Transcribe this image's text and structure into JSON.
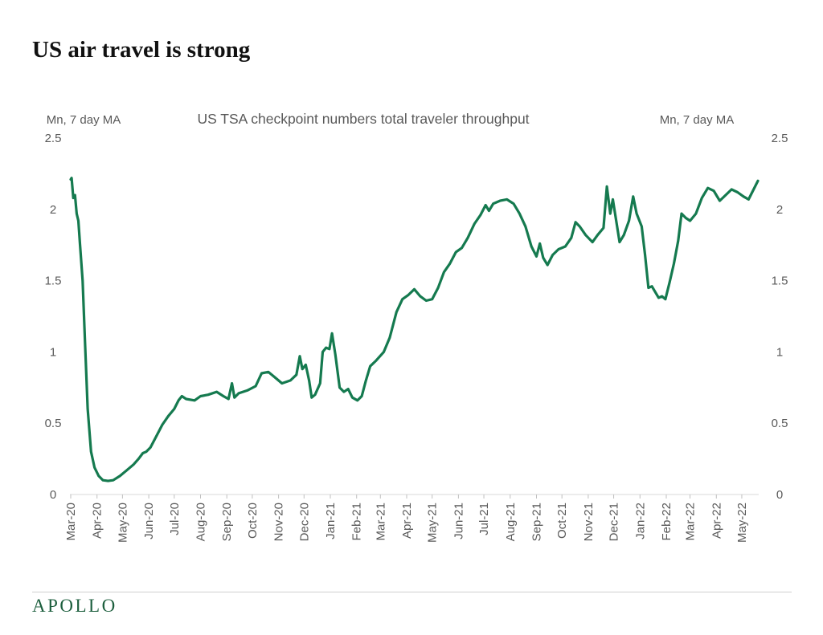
{
  "page": {
    "headline": "US air travel is strong",
    "brand": "APOLLO",
    "brand_color": "#1c5e3d"
  },
  "chart_data": {
    "type": "line",
    "title": "US TSA checkpoint numbers total traveler throughput",
    "y_left_label": "Mn, 7 day MA",
    "y_right_label": "Mn, 7 day MA",
    "ylim": [
      0,
      2.5
    ],
    "y_ticks": [
      "2.5",
      "2",
      "1.5",
      "1",
      "0.5",
      "0"
    ],
    "x_ticks": [
      "Mar-20",
      "Apr-20",
      "May-20",
      "Jun-20",
      "Jul-20",
      "Aug-20",
      "Sep-20",
      "Oct-20",
      "Nov-20",
      "Dec-20",
      "Jan-21",
      "Feb-21",
      "Mar-21",
      "Apr-21",
      "May-21",
      "Jun-21",
      "Jul-21",
      "Aug-21",
      "Sep-21",
      "Oct-21",
      "Nov-21",
      "Dec-21",
      "Jan-22",
      "Feb-22",
      "Mar-22",
      "Apr-22",
      "May-22"
    ],
    "grid": false,
    "legend": "none",
    "line_color": "#157a4f",
    "series": [
      {
        "points": [
          [
            "2020-03-01",
            2.21
          ],
          [
            "2020-03-02",
            2.22
          ],
          [
            "2020-03-04",
            2.08
          ],
          [
            "2020-03-06",
            2.1
          ],
          [
            "2020-03-08",
            1.97
          ],
          [
            "2020-03-10",
            1.92
          ],
          [
            "2020-03-12",
            1.75
          ],
          [
            "2020-03-15",
            1.5
          ],
          [
            "2020-03-18",
            1.05
          ],
          [
            "2020-03-21",
            0.6
          ],
          [
            "2020-03-25",
            0.3
          ],
          [
            "2020-03-29",
            0.19
          ],
          [
            "2020-04-03",
            0.13
          ],
          [
            "2020-04-08",
            0.1
          ],
          [
            "2020-04-14",
            0.095
          ],
          [
            "2020-04-20",
            0.1
          ],
          [
            "2020-04-28",
            0.13
          ],
          [
            "2020-05-06",
            0.17
          ],
          [
            "2020-05-14",
            0.21
          ],
          [
            "2020-05-20",
            0.25
          ],
          [
            "2020-05-25",
            0.29
          ],
          [
            "2020-05-29",
            0.3
          ],
          [
            "2020-06-03",
            0.33
          ],
          [
            "2020-06-10",
            0.41
          ],
          [
            "2020-06-17",
            0.49
          ],
          [
            "2020-06-24",
            0.55
          ],
          [
            "2020-07-01",
            0.6
          ],
          [
            "2020-07-06",
            0.66
          ],
          [
            "2020-07-10",
            0.69
          ],
          [
            "2020-07-15",
            0.67
          ],
          [
            "2020-07-25",
            0.66
          ],
          [
            "2020-08-01",
            0.69
          ],
          [
            "2020-08-10",
            0.7
          ],
          [
            "2020-08-20",
            0.72
          ],
          [
            "2020-08-28",
            0.69
          ],
          [
            "2020-09-03",
            0.67
          ],
          [
            "2020-09-07",
            0.78
          ],
          [
            "2020-09-10",
            0.68
          ],
          [
            "2020-09-15",
            0.71
          ],
          [
            "2020-09-25",
            0.73
          ],
          [
            "2020-10-05",
            0.76
          ],
          [
            "2020-10-12",
            0.85
          ],
          [
            "2020-10-20",
            0.86
          ],
          [
            "2020-10-28",
            0.82
          ],
          [
            "2020-11-05",
            0.78
          ],
          [
            "2020-11-15",
            0.8
          ],
          [
            "2020-11-22",
            0.84
          ],
          [
            "2020-11-26",
            0.97
          ],
          [
            "2020-11-29",
            0.88
          ],
          [
            "2020-12-03",
            0.91
          ],
          [
            "2020-12-07",
            0.8
          ],
          [
            "2020-12-10",
            0.68
          ],
          [
            "2020-12-14",
            0.7
          ],
          [
            "2020-12-20",
            0.78
          ],
          [
            "2020-12-23",
            1.0
          ],
          [
            "2020-12-27",
            1.03
          ],
          [
            "2020-12-31",
            1.02
          ],
          [
            "2021-01-03",
            1.13
          ],
          [
            "2021-01-07",
            0.98
          ],
          [
            "2021-01-12",
            0.75
          ],
          [
            "2021-01-17",
            0.72
          ],
          [
            "2021-01-22",
            0.74
          ],
          [
            "2021-01-27",
            0.68
          ],
          [
            "2021-02-02",
            0.66
          ],
          [
            "2021-02-07",
            0.69
          ],
          [
            "2021-02-12",
            0.8
          ],
          [
            "2021-02-17",
            0.9
          ],
          [
            "2021-02-24",
            0.94
          ],
          [
            "2021-03-05",
            1.0
          ],
          [
            "2021-03-12",
            1.1
          ],
          [
            "2021-03-20",
            1.28
          ],
          [
            "2021-03-27",
            1.37
          ],
          [
            "2021-04-03",
            1.4
          ],
          [
            "2021-04-10",
            1.44
          ],
          [
            "2021-04-17",
            1.39
          ],
          [
            "2021-04-24",
            1.36
          ],
          [
            "2021-05-01",
            1.37
          ],
          [
            "2021-05-08",
            1.45
          ],
          [
            "2021-05-15",
            1.56
          ],
          [
            "2021-05-22",
            1.62
          ],
          [
            "2021-05-29",
            1.7
          ],
          [
            "2021-06-05",
            1.73
          ],
          [
            "2021-06-12",
            1.8
          ],
          [
            "2021-06-20",
            1.9
          ],
          [
            "2021-06-27",
            1.96
          ],
          [
            "2021-07-03",
            2.03
          ],
          [
            "2021-07-07",
            1.99
          ],
          [
            "2021-07-12",
            2.04
          ],
          [
            "2021-07-20",
            2.06
          ],
          [
            "2021-07-28",
            2.07
          ],
          [
            "2021-08-05",
            2.04
          ],
          [
            "2021-08-12",
            1.97
          ],
          [
            "2021-08-19",
            1.88
          ],
          [
            "2021-08-26",
            1.74
          ],
          [
            "2021-09-01",
            1.67
          ],
          [
            "2021-09-05",
            1.76
          ],
          [
            "2021-09-09",
            1.66
          ],
          [
            "2021-09-14",
            1.61
          ],
          [
            "2021-09-20",
            1.68
          ],
          [
            "2021-09-27",
            1.72
          ],
          [
            "2021-10-05",
            1.74
          ],
          [
            "2021-10-12",
            1.8
          ],
          [
            "2021-10-17",
            1.91
          ],
          [
            "2021-10-22",
            1.88
          ],
          [
            "2021-10-29",
            1.82
          ],
          [
            "2021-11-06",
            1.77
          ],
          [
            "2021-11-12",
            1.82
          ],
          [
            "2021-11-19",
            1.87
          ],
          [
            "2021-11-23",
            2.16
          ],
          [
            "2021-11-27",
            1.97
          ],
          [
            "2021-11-30",
            2.07
          ],
          [
            "2021-12-04",
            1.92
          ],
          [
            "2021-12-08",
            1.77
          ],
          [
            "2021-12-13",
            1.82
          ],
          [
            "2021-12-19",
            1.92
          ],
          [
            "2021-12-24",
            2.09
          ],
          [
            "2021-12-28",
            1.97
          ],
          [
            "2022-01-03",
            1.88
          ],
          [
            "2022-01-07",
            1.68
          ],
          [
            "2022-01-11",
            1.45
          ],
          [
            "2022-01-15",
            1.46
          ],
          [
            "2022-01-19",
            1.42
          ],
          [
            "2022-01-23",
            1.38
          ],
          [
            "2022-01-27",
            1.39
          ],
          [
            "2022-01-31",
            1.37
          ],
          [
            "2022-02-05",
            1.49
          ],
          [
            "2022-02-10",
            1.62
          ],
          [
            "2022-02-15",
            1.78
          ],
          [
            "2022-02-19",
            1.97
          ],
          [
            "2022-02-24",
            1.94
          ],
          [
            "2022-03-01",
            1.92
          ],
          [
            "2022-03-08",
            1.97
          ],
          [
            "2022-03-15",
            2.08
          ],
          [
            "2022-03-22",
            2.15
          ],
          [
            "2022-03-29",
            2.13
          ],
          [
            "2022-04-05",
            2.06
          ],
          [
            "2022-04-12",
            2.1
          ],
          [
            "2022-04-19",
            2.14
          ],
          [
            "2022-04-26",
            2.12
          ],
          [
            "2022-05-03",
            2.09
          ],
          [
            "2022-05-09",
            2.07
          ],
          [
            "2022-05-15",
            2.14
          ],
          [
            "2022-05-20",
            2.2
          ]
        ]
      }
    ]
  }
}
